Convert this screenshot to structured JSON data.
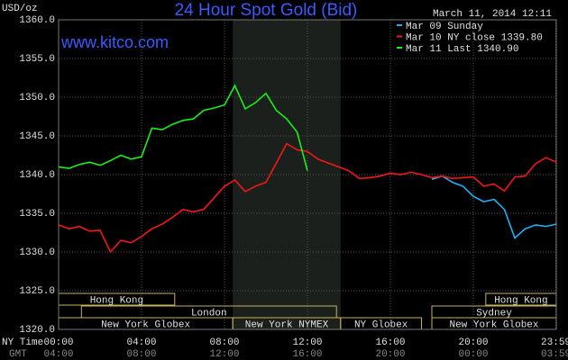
{
  "chart_data": {
    "type": "line",
    "title": "24 Hour Spot Gold (Bid)",
    "watermark": "www.kitco.com",
    "timestamp": "March 11, 2014 12:11",
    "y_label": "USD/oz",
    "x_label": "NY Time",
    "x2_label": "GMT",
    "xlim": [
      0,
      24
    ],
    "xticks": [
      {
        "value": 0,
        "label": "00:00"
      },
      {
        "value": 4,
        "label": "04:00"
      },
      {
        "value": 8,
        "label": "08:00"
      },
      {
        "value": 12,
        "label": "12:00"
      },
      {
        "value": 16,
        "label": "16:00"
      },
      {
        "value": 20,
        "label": "20:00"
      },
      {
        "value": 23.98,
        "label": "23:59"
      }
    ],
    "x2tick_labels": [
      "04:00",
      "08:00",
      "12:00",
      "16:00",
      "20:00",
      "00:00",
      "03:59"
    ],
    "ylim": [
      1320,
      1360
    ],
    "yticks": [
      {
        "value": 1320,
        "label": "1320.0"
      },
      {
        "value": 1325,
        "label": "1325.0"
      },
      {
        "value": 1330,
        "label": "1330.0"
      },
      {
        "value": 1335,
        "label": "1335.0"
      },
      {
        "value": 1340,
        "label": "1340.0"
      },
      {
        "value": 1345,
        "label": "1345.0"
      },
      {
        "value": 1350,
        "label": "1350.0"
      },
      {
        "value": 1355,
        "label": "1355.0"
      },
      {
        "value": 1360,
        "label": "1360.0"
      }
    ],
    "grid": true,
    "legend": "top-right",
    "shade": [
      8.4,
      13.6
    ],
    "x": [
      0,
      0.5,
      1,
      1.5,
      2,
      2.5,
      3,
      3.5,
      4,
      4.5,
      5,
      5.5,
      6,
      6.5,
      7,
      7.5,
      8,
      8.5,
      9,
      9.5,
      10,
      10.5,
      11,
      11.5,
      12,
      12.5,
      13,
      13.5,
      14,
      14.5,
      15,
      15.5,
      16,
      16.5,
      17,
      17.5,
      18,
      18.5,
      19,
      19.5,
      20,
      20.5,
      21,
      21.5,
      22,
      22.5,
      23,
      23.5,
      24
    ],
    "series": [
      {
        "name": "Mar 09 Sunday",
        "color": "#20b0f0",
        "values": [
          null,
          null,
          null,
          null,
          null,
          null,
          null,
          null,
          null,
          null,
          null,
          null,
          null,
          null,
          null,
          null,
          null,
          null,
          null,
          null,
          null,
          null,
          null,
          null,
          null,
          null,
          null,
          null,
          null,
          null,
          null,
          null,
          null,
          null,
          null,
          null,
          1339.4,
          1339.8,
          1339.0,
          1338.5,
          1337.2,
          1336.5,
          1336.8,
          1335.5,
          1331.8,
          1333.0,
          1333.5,
          1333.3,
          1333.6
        ]
      },
      {
        "name": "Mar 10 NY close 1339.80",
        "color": "#f01818",
        "values": [
          1333.5,
          1333.0,
          1333.3,
          1332.7,
          1332.8,
          1330.0,
          1331.5,
          1331.2,
          1332.0,
          1333.0,
          1333.6,
          1334.5,
          1335.5,
          1335.2,
          1335.5,
          1337.0,
          1338.5,
          1339.3,
          1337.8,
          1338.5,
          1339.0,
          1341.5,
          1344.0,
          1343.2,
          1343.0,
          1342.0,
          1341.5,
          1341.0,
          1340.5,
          1339.5,
          1339.6,
          1339.8,
          1340.2,
          1340.0,
          1340.3,
          1340.0,
          1339.6,
          1339.8,
          1339.5,
          1339.6,
          1339.7,
          1338.5,
          1338.8,
          1337.9,
          1339.7,
          1339.8,
          1341.4,
          1342.2,
          1341.6
        ]
      },
      {
        "name": "Mar 11 Last 1340.90",
        "color": "#18f018",
        "values": [
          1341.0,
          1340.8,
          1341.3,
          1341.6,
          1341.2,
          1341.8,
          1342.5,
          1342.0,
          1342.3,
          1346.0,
          1345.8,
          1346.5,
          1347.0,
          1347.2,
          1348.3,
          1348.6,
          1349.0,
          1351.5,
          1348.5,
          1349.3,
          1350.5,
          1348.3,
          1347.2,
          1345.5,
          1340.5,
          null,
          null,
          null,
          null,
          null,
          null,
          null,
          null,
          null,
          null,
          null,
          null,
          null,
          null,
          null,
          null,
          null,
          null,
          null,
          null,
          null,
          null,
          null,
          null
        ]
      }
    ],
    "sessions": [
      [
        {
          "label": "Hong Kong",
          "start": 0,
          "end": 5.6
        },
        {
          "label": "Hong Kong",
          "start": 20.6,
          "end": 24
        }
      ],
      [
        {
          "label": "London",
          "start": 1.1,
          "end": 13.4
        },
        {
          "label": "Sydney",
          "start": 18,
          "end": 24
        }
      ],
      [
        {
          "label": "New York Globex",
          "start": 0,
          "end": 8.4
        },
        {
          "label": "New York NYMEX",
          "start": 8.4,
          "end": 13.6
        },
        {
          "label": "NY Globex",
          "start": 13.6,
          "end": 17.5
        },
        {
          "label": "New York Globex",
          "start": 18,
          "end": 24
        }
      ]
    ]
  }
}
